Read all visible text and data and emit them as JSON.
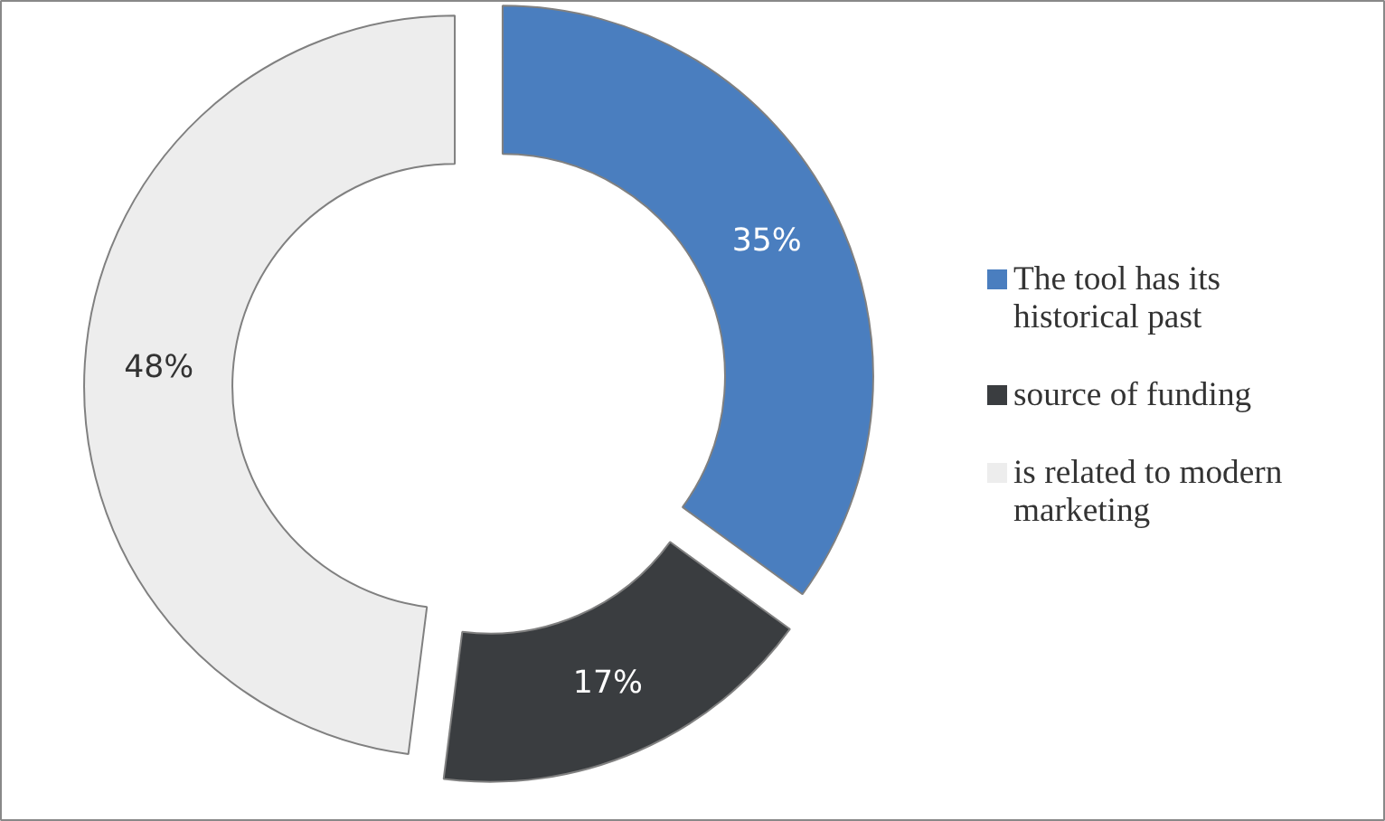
{
  "chart_data": {
    "type": "donut",
    "categories": [
      "The tool has its historical past",
      "source of funding",
      "is related to modern marketing"
    ],
    "values": [
      35,
      17,
      48
    ],
    "colors": [
      "#4a7ebf",
      "#3a3d40",
      "#ededed"
    ],
    "value_labels": [
      "35%",
      "17%",
      "48%"
    ],
    "legend": "right"
  }
}
